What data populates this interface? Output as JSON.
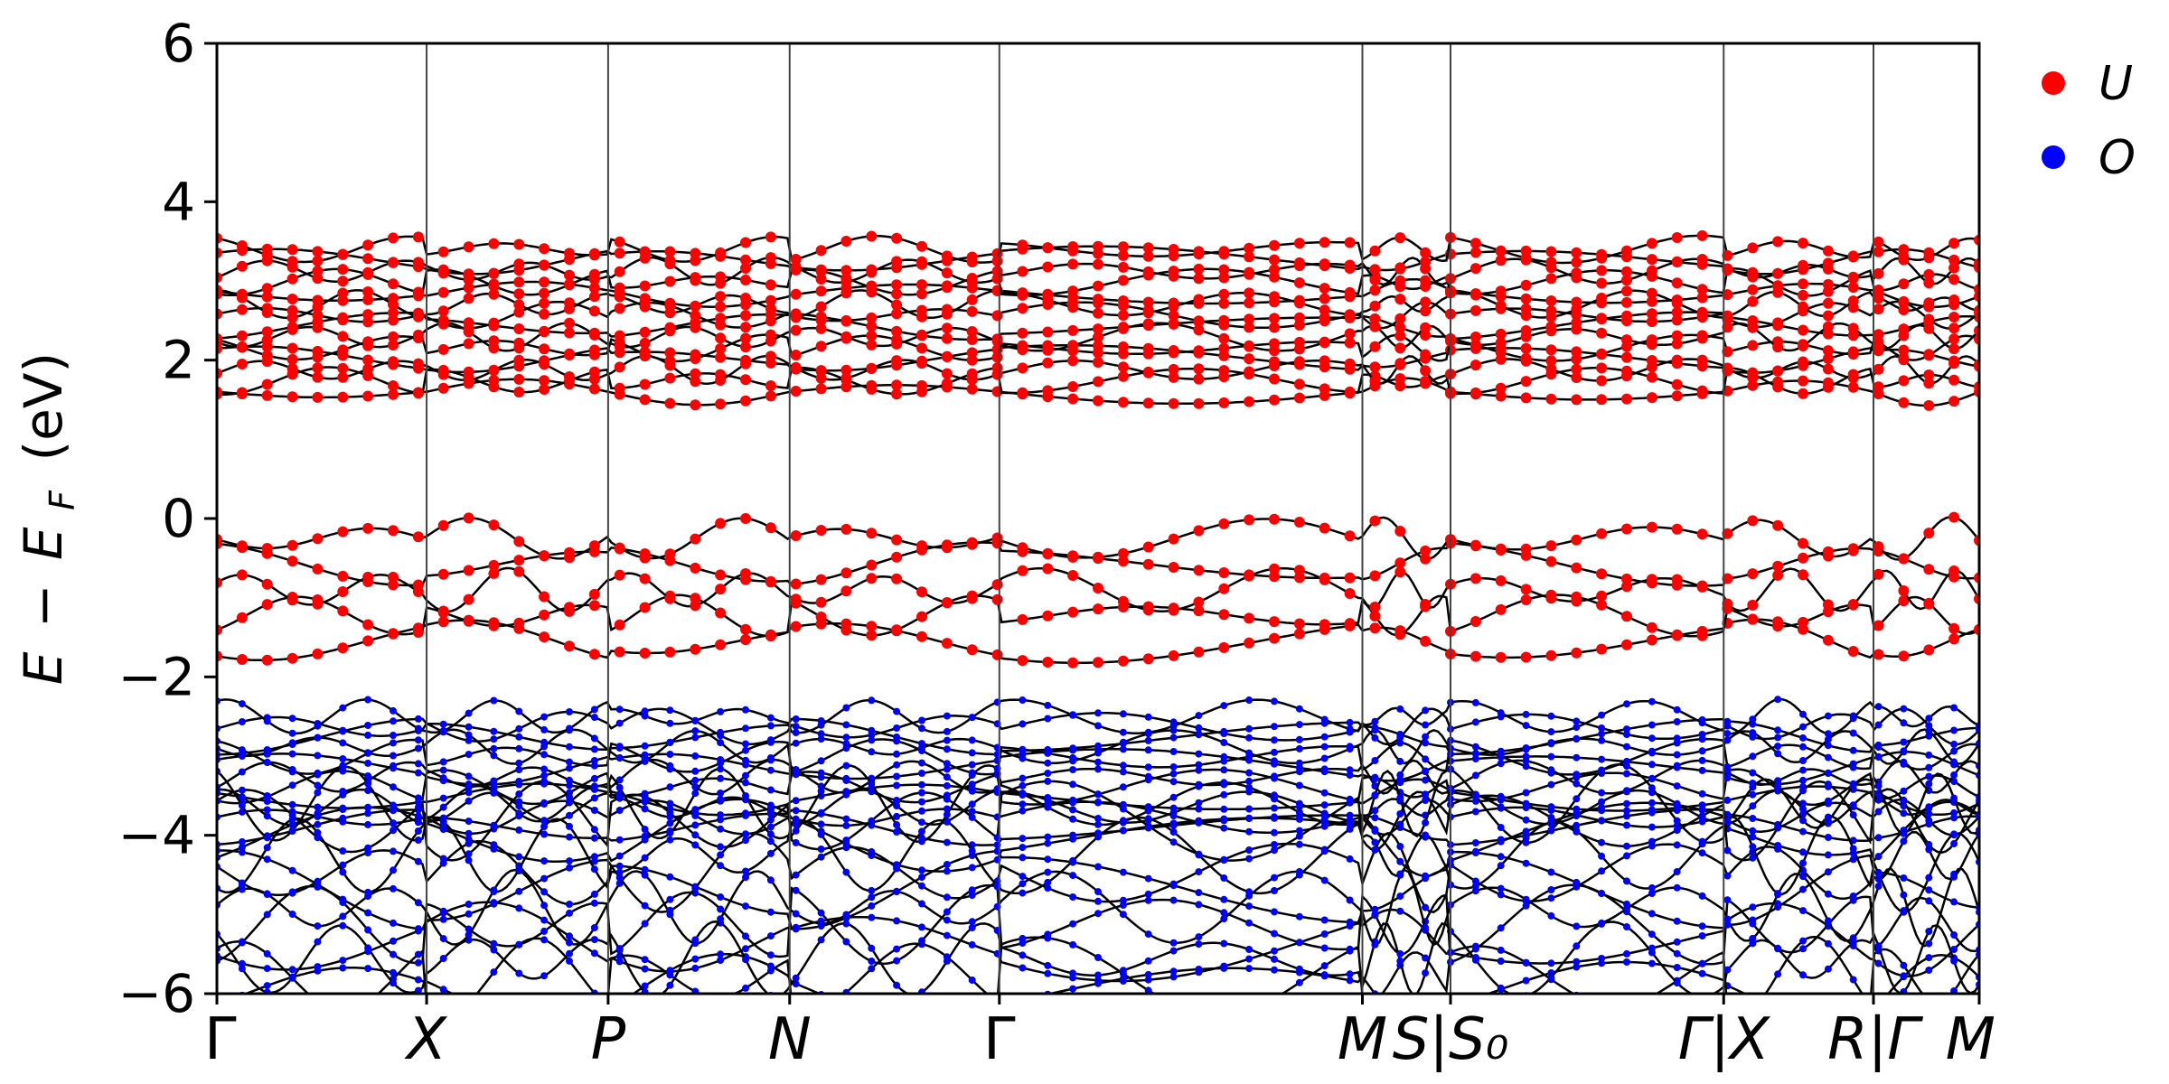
{
  "chart_data": {
    "type": "scatter",
    "title": "",
    "ylabel_parts": {
      "e": "E",
      "minus": "−",
      "ef": "E",
      "ef_sub": "F",
      "unit": "(eV)"
    },
    "ylim": [
      -6,
      6
    ],
    "yticks": [
      {
        "value": -6,
        "label": "−6"
      },
      {
        "value": -4,
        "label": "−4"
      },
      {
        "value": -2,
        "label": "−2"
      },
      {
        "value": 0,
        "label": "0"
      },
      {
        "value": 2,
        "label": "2"
      },
      {
        "value": 4,
        "label": "4"
      },
      {
        "value": 6,
        "label": "6"
      }
    ],
    "xlim": [
      0,
      1
    ],
    "kpoints": [
      {
        "x": 0.0,
        "label": "Γ",
        "line": false,
        "upright": true
      },
      {
        "x": 0.119,
        "label": "X",
        "line": true
      },
      {
        "x": 0.222,
        "label": "P",
        "line": true
      },
      {
        "x": 0.325,
        "label": "N",
        "line": true
      },
      {
        "x": 0.444,
        "label": "Γ",
        "line": true,
        "upright": true
      },
      {
        "x": 0.65,
        "label": "M",
        "line": true
      },
      {
        "x": 0.7,
        "label": "S|S₀",
        "line": true
      },
      {
        "x": 0.855,
        "label": "Γ|X",
        "line": true
      },
      {
        "x": 0.94,
        "label": "R|Γ",
        "line": true
      },
      {
        "x": 1.0,
        "label": "M",
        "line": false
      }
    ],
    "legend": {
      "position": "outside-top-right",
      "entries": [
        {
          "name": "U",
          "color": "#ff0000"
        },
        {
          "name": "O",
          "color": "#0000ff"
        }
      ]
    },
    "band_groups": [
      {
        "name": "U",
        "color": "#ff0000",
        "energy_range": [
          1.6,
          3.4
        ],
        "count": 14,
        "amplitude": 0.35
      },
      {
        "name": "U",
        "color": "#ff0000",
        "energy_range": [
          -1.55,
          -0.25
        ],
        "count": 5,
        "amplitude": 0.55
      },
      {
        "name": "O",
        "color": "#0000ff",
        "energy_range": [
          -3.9,
          -2.5
        ],
        "count": 12,
        "amplitude": 0.45
      },
      {
        "name": "O",
        "color": "#0000ff",
        "energy_range": [
          -6.0,
          -3.6
        ],
        "count": 12,
        "amplitude": 1.0
      }
    ],
    "grid": false
  }
}
